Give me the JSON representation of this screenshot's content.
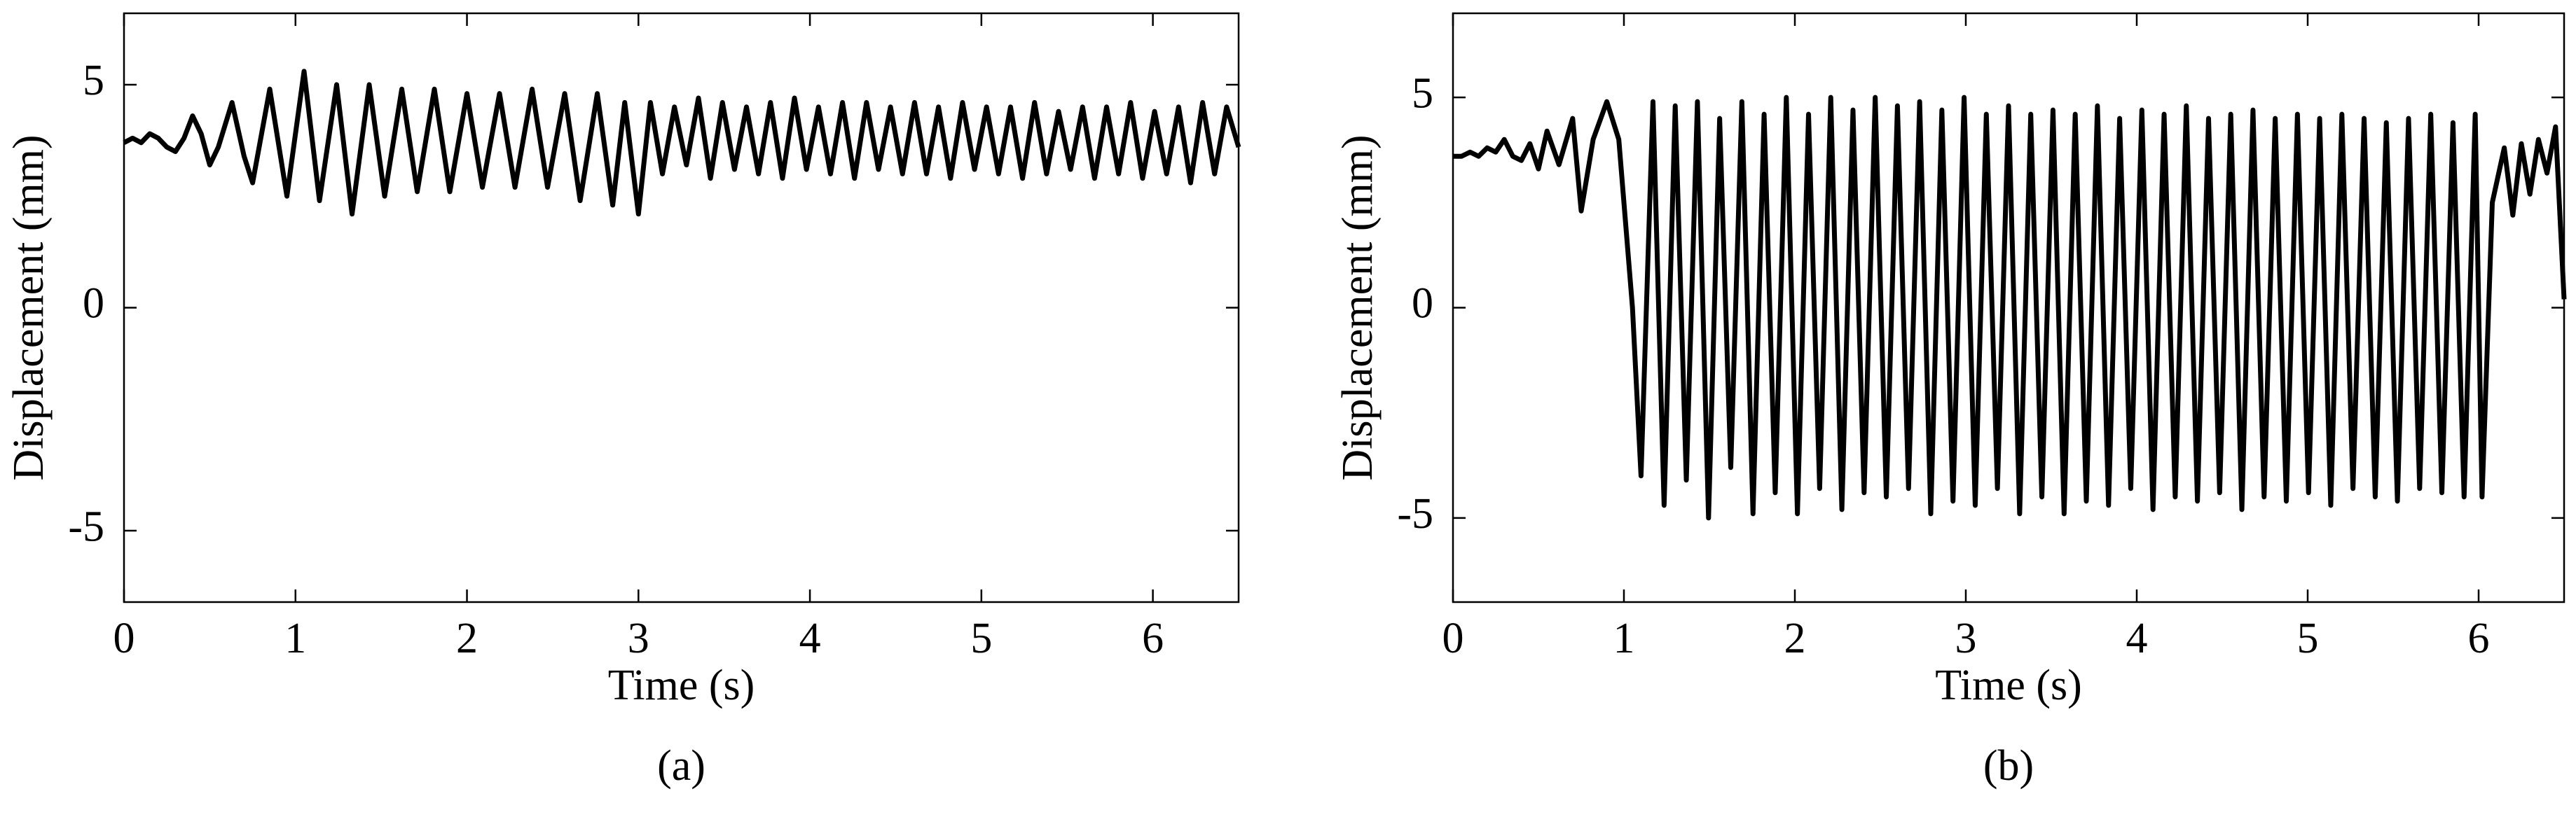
{
  "chart_data": [
    {
      "type": "line",
      "xlabel": "Time (s)",
      "ylabel": "Displacement (mm)",
      "caption": "(a)",
      "color": "#000000",
      "xlim": [
        0,
        6.5
      ],
      "ylim": [
        -6.6,
        6.6
      ],
      "xticks": [
        0,
        1,
        2,
        3,
        4,
        5,
        6
      ],
      "yticks": [
        -5,
        0,
        5
      ],
      "x": [
        0,
        0.05,
        0.1,
        0.15,
        0.2,
        0.25,
        0.3,
        0.35,
        0.4,
        0.45,
        0.5,
        0.55,
        0.63,
        0.7,
        0.75,
        0.85,
        0.95,
        1.05,
        1.14,
        1.24,
        1.33,
        1.43,
        1.52,
        1.62,
        1.71,
        1.81,
        1.9,
        2.0,
        2.09,
        2.19,
        2.28,
        2.38,
        2.47,
        2.57,
        2.66,
        2.76,
        2.85,
        2.92,
        3.0,
        3.07,
        3.14,
        3.21,
        3.28,
        3.35,
        3.42,
        3.49,
        3.56,
        3.63,
        3.7,
        3.77,
        3.84,
        3.91,
        3.98,
        4.05,
        4.12,
        4.19,
        4.26,
        4.33,
        4.4,
        4.47,
        4.54,
        4.61,
        4.68,
        4.75,
        4.82,
        4.89,
        4.96,
        5.03,
        5.1,
        5.17,
        5.24,
        5.31,
        5.38,
        5.45,
        5.52,
        5.59,
        5.66,
        5.73,
        5.8,
        5.87,
        5.94,
        6.01,
        6.08,
        6.15,
        6.22,
        6.29,
        6.36,
        6.43,
        6.5
      ],
      "values": [
        3.7,
        3.8,
        3.7,
        3.9,
        3.8,
        3.6,
        3.5,
        3.8,
        4.3,
        3.9,
        3.2,
        3.6,
        4.6,
        3.4,
        2.8,
        4.9,
        2.5,
        5.3,
        2.4,
        5.0,
        2.1,
        5.0,
        2.5,
        4.9,
        2.6,
        4.9,
        2.6,
        4.8,
        2.7,
        4.8,
        2.7,
        4.9,
        2.7,
        4.8,
        2.4,
        4.8,
        2.3,
        4.6,
        2.1,
        4.6,
        3.0,
        4.5,
        3.2,
        4.7,
        2.9,
        4.6,
        3.1,
        4.5,
        3.0,
        4.6,
        2.9,
        4.7,
        3.1,
        4.5,
        3.0,
        4.6,
        2.9,
        4.6,
        3.1,
        4.5,
        3.0,
        4.6,
        3.0,
        4.5,
        2.9,
        4.6,
        3.1,
        4.5,
        3.0,
        4.5,
        2.9,
        4.6,
        3.0,
        4.4,
        3.1,
        4.5,
        2.9,
        4.5,
        3.0,
        4.6,
        2.9,
        4.4,
        3.0,
        4.5,
        2.8,
        4.6,
        3.0,
        4.5,
        3.6
      ]
    },
    {
      "type": "line",
      "xlabel": "Time (s)",
      "ylabel": "Displacement (mm)",
      "caption": "(b)",
      "color": "#000000",
      "xlim": [
        0,
        6.5
      ],
      "ylim": [
        -7,
        7
      ],
      "xticks": [
        0,
        1,
        2,
        3,
        4,
        5,
        6
      ],
      "yticks": [
        -5,
        0,
        5
      ],
      "x": [
        0,
        0.05,
        0.1,
        0.15,
        0.2,
        0.25,
        0.3,
        0.35,
        0.4,
        0.45,
        0.5,
        0.55,
        0.62,
        0.7,
        0.75,
        0.82,
        0.9,
        0.97,
        1.05,
        1.1,
        1.17,
        1.235,
        1.3,
        1.365,
        1.43,
        1.495,
        1.56,
        1.625,
        1.69,
        1.755,
        1.82,
        1.885,
        1.95,
        2.015,
        2.08,
        2.145,
        2.21,
        2.275,
        2.34,
        2.405,
        2.47,
        2.535,
        2.6,
        2.665,
        2.73,
        2.795,
        2.86,
        2.925,
        2.99,
        3.055,
        3.12,
        3.185,
        3.25,
        3.315,
        3.38,
        3.445,
        3.51,
        3.575,
        3.64,
        3.705,
        3.77,
        3.835,
        3.9,
        3.965,
        4.03,
        4.095,
        4.16,
        4.225,
        4.29,
        4.355,
        4.42,
        4.485,
        4.55,
        4.615,
        4.68,
        4.745,
        4.81,
        4.875,
        4.94,
        5.005,
        5.07,
        5.135,
        5.2,
        5.265,
        5.33,
        5.395,
        5.46,
        5.525,
        5.59,
        5.655,
        5.72,
        5.785,
        5.85,
        5.915,
        5.98,
        6.02,
        6.08,
        6.15,
        6.2,
        6.25,
        6.3,
        6.35,
        6.4,
        6.45,
        6.5
      ],
      "values": [
        3.6,
        3.6,
        3.7,
        3.6,
        3.8,
        3.7,
        4.0,
        3.6,
        3.5,
        3.9,
        3.3,
        4.2,
        3.4,
        4.5,
        2.3,
        4.0,
        4.9,
        4.0,
        0.0,
        -4.0,
        4.9,
        -4.7,
        4.8,
        -4.1,
        4.9,
        -5.0,
        4.5,
        -3.8,
        4.9,
        -4.9,
        4.6,
        -4.4,
        5.0,
        -4.9,
        4.6,
        -4.3,
        5.0,
        -4.8,
        4.7,
        -4.4,
        5.0,
        -4.5,
        4.8,
        -4.3,
        4.9,
        -4.9,
        4.7,
        -4.6,
        5.0,
        -4.7,
        4.6,
        -4.3,
        4.8,
        -4.9,
        4.6,
        -4.5,
        4.7,
        -4.9,
        4.6,
        -4.6,
        4.8,
        -4.7,
        4.5,
        -4.3,
        4.7,
        -4.8,
        4.6,
        -4.5,
        4.8,
        -4.6,
        4.5,
        -4.4,
        4.6,
        -4.8,
        4.7,
        -4.5,
        4.5,
        -4.6,
        4.6,
        -4.4,
        4.5,
        -4.7,
        4.6,
        -4.3,
        4.5,
        -4.5,
        4.4,
        -4.6,
        4.5,
        -4.3,
        4.6,
        -4.4,
        4.4,
        -4.5,
        4.6,
        -4.5,
        2.5,
        3.8,
        2.2,
        3.9,
        2.7,
        4.0,
        3.2,
        4.3,
        0.2
      ]
    }
  ]
}
